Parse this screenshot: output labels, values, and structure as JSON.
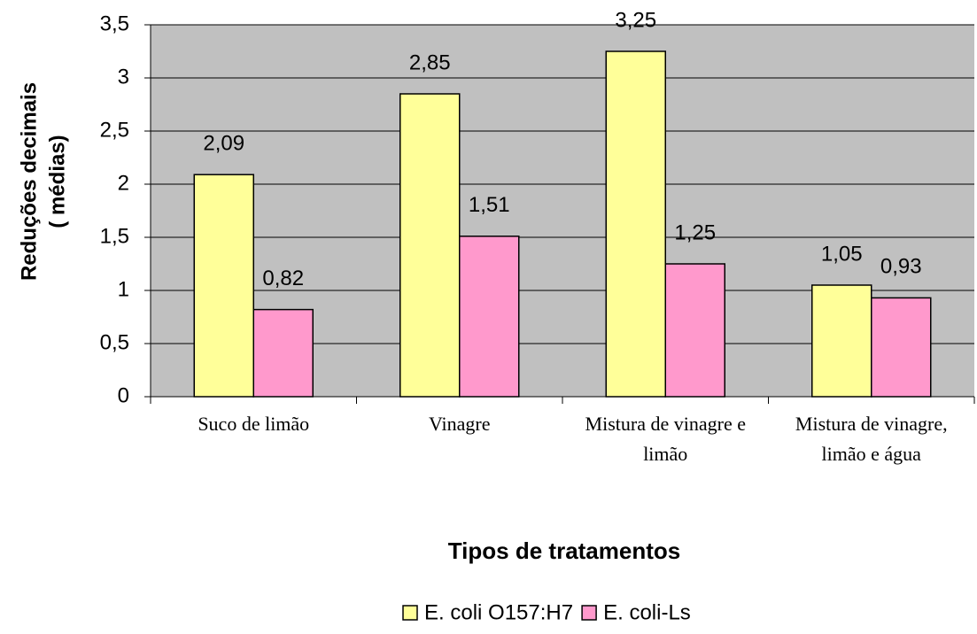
{
  "chart_data": {
    "type": "bar",
    "xlabel": "Tipos de tratamentos",
    "ylabel": [
      "Reduções decimais",
      "( médias)"
    ],
    "categories": [
      "Suco de limão",
      "Vinagre",
      "Mistura de vinagre e limão",
      "Mistura de vinagre, limão e água"
    ],
    "series": [
      {
        "name": "E. coli O157:H7",
        "color": "#ffff99",
        "values": [
          2.09,
          2.85,
          3.25,
          1.05
        ],
        "value_labels": [
          "2,09",
          "2,85",
          "3,25",
          "1,05"
        ]
      },
      {
        "name": "E. coli-Ls",
        "color": "#ff99cc",
        "values": [
          0.82,
          1.51,
          1.25,
          0.93
        ],
        "value_labels": [
          "0,82",
          "1,51",
          "1,25",
          "0,93"
        ]
      }
    ],
    "ylim": [
      0,
      3.5
    ],
    "yticks": [
      0,
      {
        "value": 0.5,
        "label": "0,5"
      },
      1,
      {
        "value": 1.5,
        "label": "1,5"
      },
      2,
      {
        "value": 2.5,
        "label": "2,5"
      },
      3,
      {
        "value": 3.5,
        "label": "3,5"
      }
    ],
    "grid": true,
    "legend": "bottom"
  }
}
